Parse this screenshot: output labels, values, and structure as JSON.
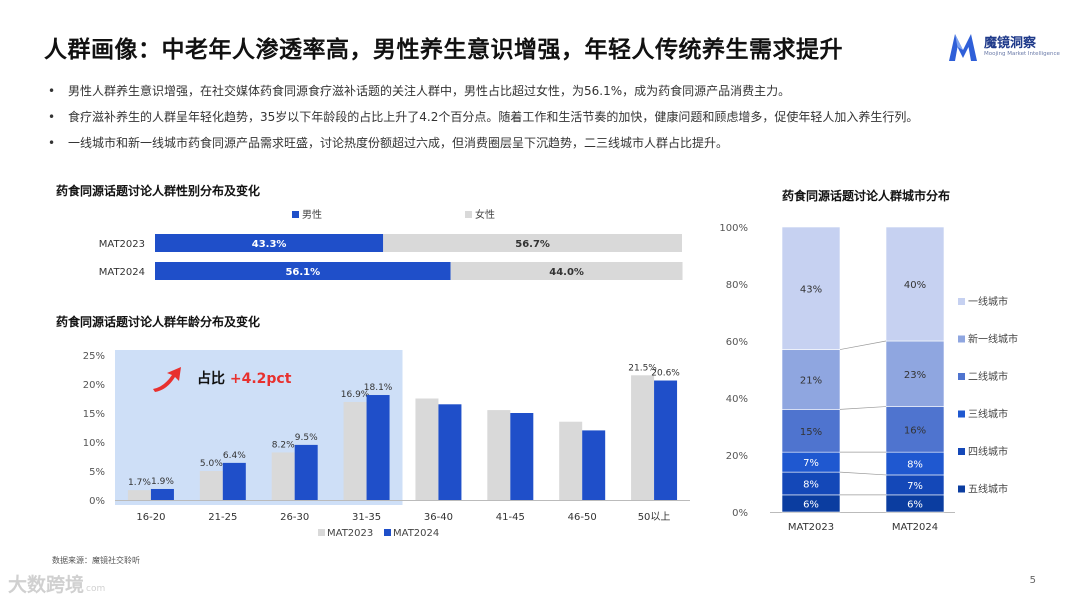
{
  "title": "人群画像：中老年人渗透率高，男性养生意识增强，年轻人传统养生需求提升",
  "logo": {
    "name": "魔镜洞察",
    "subtitle": "Moojing Market Intelligence"
  },
  "bullets": [
    "男性人群养生意识增强，在社交媒体药食同源食疗滋补话题的关注人群中，男性占比超过女性，为56.1%，成为药食同源产品消费主力。",
    "食疗滋补养生的人群呈年轻化趋势，35岁以下年龄段的占比上升了4.2个百分点。随着工作和生活节奏的加快，健康问题和顾虑增多，促使年轻人加入养生行列。",
    "一线城市和新一线城市药食同源产品需求旺盛，讨论热度份额超过六成，但消费圈层呈下沉趋势，二三线城市人群占比提升。"
  ],
  "highlight": {
    "prefix": "占比 ",
    "value": "+4.2pct"
  },
  "source": "数据来源：魔镜社交聆听",
  "page": "5",
  "watermark": {
    "text": "大数跨境",
    "domain": "com"
  },
  "colors": {
    "dark_blue": "#1f4fc9",
    "grey": "#d9d9d9",
    "highlight_bg": "#c9dcf6",
    "red": "#e8312f"
  },
  "chart_data": [
    {
      "id": "gender",
      "type": "bar",
      "orientation": "horizontal-stacked",
      "title": "药食同源话题讨论人群性别分布及变化",
      "categories": [
        "MAT2023",
        "MAT2024"
      ],
      "series": [
        {
          "name": "男性",
          "values": [
            43.3,
            56.1
          ],
          "labels": [
            "43.3%",
            "56.1%"
          ],
          "color": "#1f4fc9"
        },
        {
          "name": "女性",
          "values": [
            56.7,
            44.0
          ],
          "labels": [
            "56.7%",
            "44.0%"
          ],
          "color": "#d9d9d9"
        }
      ],
      "xlim": [
        0,
        100
      ]
    },
    {
      "id": "age",
      "type": "bar",
      "title": "药食同源话题讨论人群年龄分布及变化",
      "categories": [
        "16-20",
        "21-25",
        "26-30",
        "31-35",
        "36-40",
        "41-45",
        "46-50",
        "50以上"
      ],
      "series": [
        {
          "name": "MAT2023",
          "values": [
            1.7,
            5.0,
            8.2,
            16.9,
            17.5,
            15.5,
            13.5,
            21.5
          ],
          "labels": [
            "1.7%",
            "5.0%",
            "8.2%",
            "16.9%",
            "",
            "",
            "",
            "21.5%"
          ],
          "color": "#d9d9d9"
        },
        {
          "name": "MAT2024",
          "values": [
            1.9,
            6.4,
            9.5,
            18.1,
            16.5,
            15.0,
            12.0,
            20.6
          ],
          "labels": [
            "1.9%",
            "6.4%",
            "9.5%",
            "18.1%",
            "",
            "",
            "",
            "20.6%"
          ],
          "color": "#1f4fc9"
        }
      ],
      "yticks": [
        "0%",
        "5%",
        "10%",
        "15%",
        "20%",
        "25%"
      ],
      "ylim": [
        0,
        25
      ],
      "highlight_categories": [
        "16-20",
        "21-25",
        "26-30",
        "31-35"
      ]
    },
    {
      "id": "city",
      "type": "bar",
      "orientation": "vertical-stacked-100",
      "title": "药食同源话题讨论人群城市分布",
      "categories": [
        "MAT2023",
        "MAT2024"
      ],
      "series": [
        {
          "name": "五线城市",
          "values": [
            6,
            6
          ],
          "labels": [
            "6%",
            "6%"
          ],
          "color": "#0b3da0"
        },
        {
          "name": "四线城市",
          "values": [
            8,
            7
          ],
          "labels": [
            "8%",
            "7%"
          ],
          "color": "#1448b8"
        },
        {
          "name": "三线城市",
          "values": [
            7,
            8
          ],
          "labels": [
            "7%",
            "8%"
          ],
          "color": "#1f58d0"
        },
        {
          "name": "二线城市",
          "values": [
            15,
            16
          ],
          "labels": [
            "15%",
            "16%"
          ],
          "color": "#4f74cf"
        },
        {
          "name": "新一线城市",
          "values": [
            21,
            23
          ],
          "labels": [
            "21%",
            "23%"
          ],
          "color": "#8fa6e0"
        },
        {
          "name": "一线城市",
          "values": [
            43,
            40
          ],
          "labels": [
            "43%",
            "40%"
          ],
          "color": "#c6d1f1"
        }
      ],
      "legend_order": [
        "一线城市",
        "新一线城市",
        "二线城市",
        "三线城市",
        "四线城市",
        "五线城市"
      ],
      "yticks": [
        "0%",
        "20%",
        "40%",
        "60%",
        "80%",
        "100%"
      ],
      "ylim": [
        0,
        100
      ]
    }
  ]
}
